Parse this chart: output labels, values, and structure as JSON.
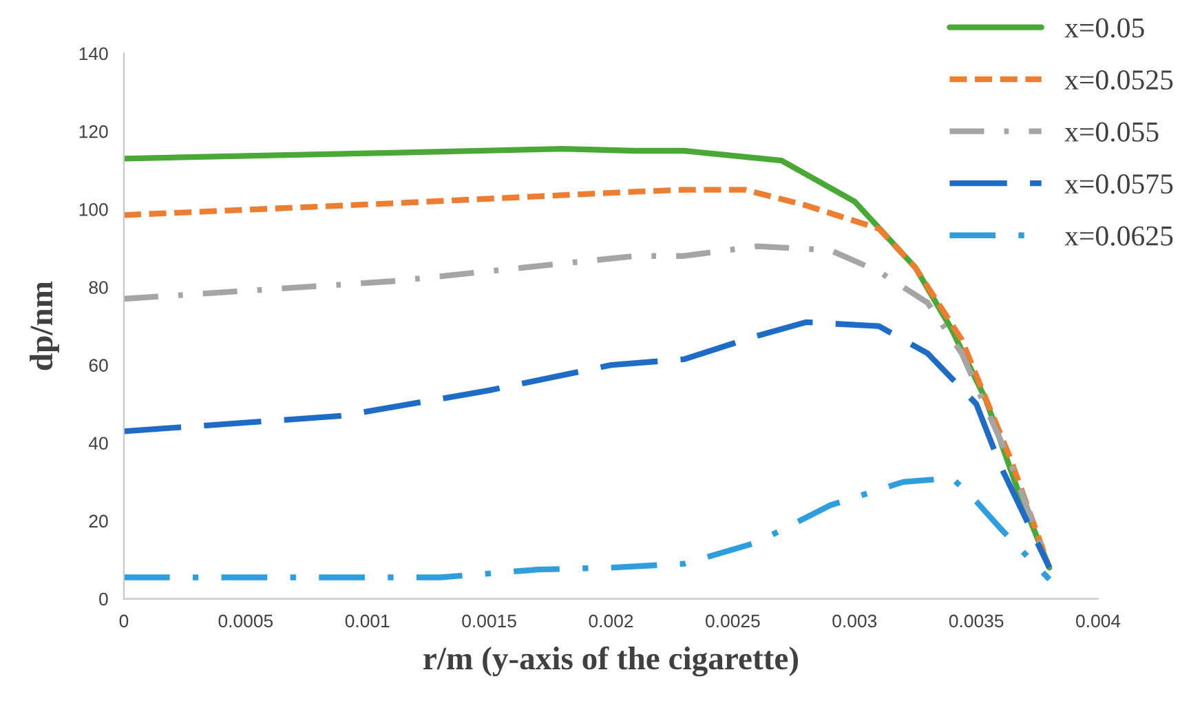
{
  "chart_data": {
    "type": "line",
    "xlabel": "r/m (y-axis of the cigarette)",
    "ylabel": "dp/nm",
    "xlim": [
      0,
      0.004
    ],
    "xticks": [
      0,
      0.0005,
      0.001,
      0.0015,
      0.002,
      0.0025,
      0.003,
      0.0035,
      0.004
    ],
    "ylim": [
      0,
      140
    ],
    "yticks": [
      0,
      20,
      40,
      60,
      80,
      100,
      120,
      140
    ],
    "grid": false,
    "legend": "top right",
    "marker": "none",
    "series": [
      {
        "name": "x=0.05",
        "color": "#4aa836",
        "line_style": "solid",
        "x": [
          0,
          0.0011,
          0.0018,
          0.0021,
          0.0023,
          0.0027,
          0.003,
          0.00325,
          0.0034,
          0.00354,
          0.00367,
          0.0038
        ],
        "values": [
          113,
          114.5,
          115.5,
          115,
          115,
          112.5,
          102,
          85,
          69,
          51,
          28,
          8
        ]
      },
      {
        "name": "x=0.0525",
        "color": "#ed7d31",
        "line_style": "dashed",
        "x": [
          0,
          0.0011,
          0.0021,
          0.0023,
          0.00255,
          0.0028,
          0.0031,
          0.00325,
          0.00344,
          0.00364,
          0.0038
        ],
        "values": [
          98.5,
          101.5,
          104.5,
          105,
          105,
          101,
          95,
          85,
          66.5,
          36,
          8
        ]
      },
      {
        "name": "x=0.055",
        "color": "#a5a5a5",
        "line_style": "dashdot",
        "x": [
          0,
          0.0011,
          0.0021,
          0.0023,
          0.0026,
          0.0029,
          0.0031,
          0.0033,
          0.00344,
          0.00364,
          0.0038
        ],
        "values": [
          77,
          81.5,
          88,
          88,
          90.5,
          89.5,
          84,
          76,
          63,
          35,
          8
        ]
      },
      {
        "name": "x=0.0575",
        "color": "#1f6cc6",
        "line_style": "longdash",
        "x": [
          0,
          0.0009,
          0.0015,
          0.002,
          0.0023,
          0.0026,
          0.0028,
          0.0031,
          0.0033,
          0.0035,
          0.0036,
          0.0038
        ],
        "values": [
          43,
          47,
          53.5,
          60,
          61.5,
          67.5,
          71,
          70,
          63,
          50,
          34,
          8
        ]
      },
      {
        "name": "x=0.0625",
        "color": "#2e9fdc",
        "line_style": "longdashdot",
        "x": [
          0,
          0.0013,
          0.0017,
          0.002,
          0.0023,
          0.0026,
          0.0029,
          0.0032,
          0.0034,
          0.0035,
          0.0036,
          0.0038
        ],
        "values": [
          5.5,
          5.5,
          7.5,
          8,
          9,
          14.5,
          24,
          30,
          31,
          25,
          18,
          5
        ]
      }
    ]
  }
}
